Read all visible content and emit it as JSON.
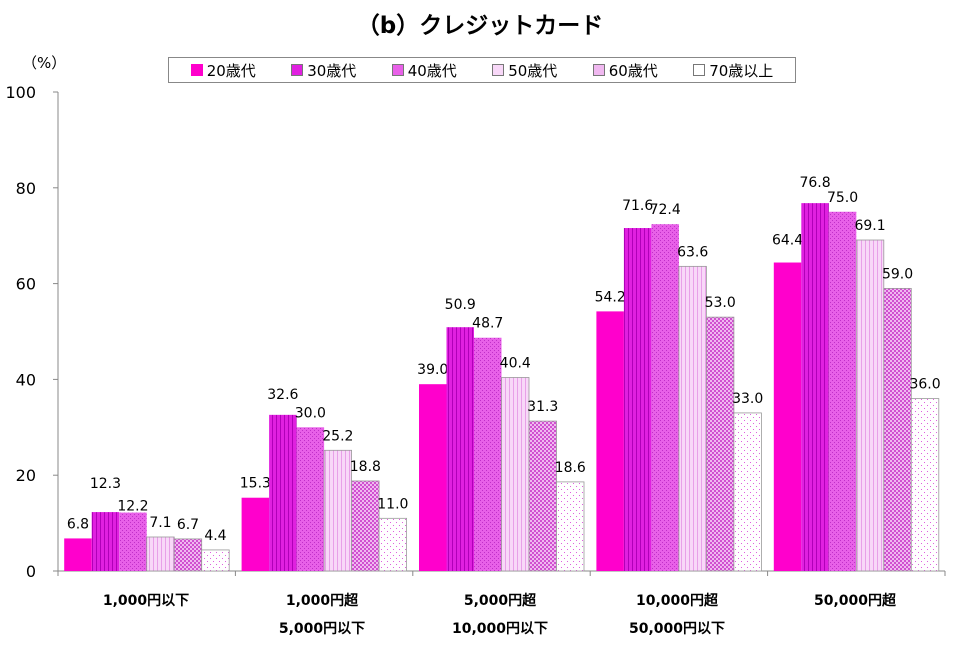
{
  "chart_data": {
    "type": "bar",
    "title": "（b）クレジットカード",
    "ylabel": "（%）",
    "xlabel": "",
    "ylim": [
      0,
      100
    ],
    "yticks": [
      0,
      20,
      40,
      60,
      80,
      100
    ],
    "grid": false,
    "legend_position": "top",
    "categories": [
      {
        "line1": "1,000円以下",
        "line2": ""
      },
      {
        "line1": "1,000円超",
        "line2": "5,000円以下"
      },
      {
        "line1": "5,000円超",
        "line2": "10,000円以下"
      },
      {
        "line1": "10,000円超",
        "line2": "50,000円以下"
      },
      {
        "line1": "50,000円超",
        "line2": ""
      }
    ],
    "series": [
      {
        "name": "20歳代",
        "color": "#ff00cc",
        "pattern": "solid",
        "values": [
          6.8,
          15.3,
          39.0,
          54.2,
          64.4
        ],
        "labels": [
          "6.8",
          "15.3",
          "39.0",
          "54.2",
          "64.4"
        ]
      },
      {
        "name": "30歳代",
        "color": "#e020e0",
        "pattern": "vstripe",
        "values": [
          12.3,
          32.6,
          50.9,
          71.6,
          76.8
        ],
        "labels": [
          "12.3",
          "32.6",
          "50.9",
          "71.6",
          "76.8"
        ]
      },
      {
        "name": "40歳代",
        "color": "#e860e8",
        "pattern": "dots",
        "values": [
          12.2,
          30.0,
          48.7,
          72.4,
          75.0
        ],
        "labels": [
          "12.2",
          "30.0",
          "48.7",
          "72.4",
          "75.0"
        ]
      },
      {
        "name": "50歳代",
        "color": "#f8d8f8",
        "pattern": "lightstripe",
        "values": [
          7.1,
          25.2,
          40.4,
          63.6,
          69.1
        ],
        "labels": [
          "7.1",
          "25.2",
          "40.4",
          "63.6",
          "69.1"
        ]
      },
      {
        "name": "60歳代",
        "color": "#f0b8f0",
        "pattern": "check",
        "values": [
          6.7,
          18.8,
          31.3,
          53.0,
          59.0
        ],
        "labels": [
          "6.7",
          "18.8",
          "31.3",
          "53.0",
          "59.0"
        ]
      },
      {
        "name": "70歳以上",
        "color": "#ffffff",
        "pattern": "sparse",
        "values": [
          4.4,
          11.0,
          18.6,
          33.0,
          36.0
        ],
        "labels": [
          "4.4",
          "11.0",
          "18.6",
          "33.0",
          "36.0"
        ]
      }
    ]
  }
}
